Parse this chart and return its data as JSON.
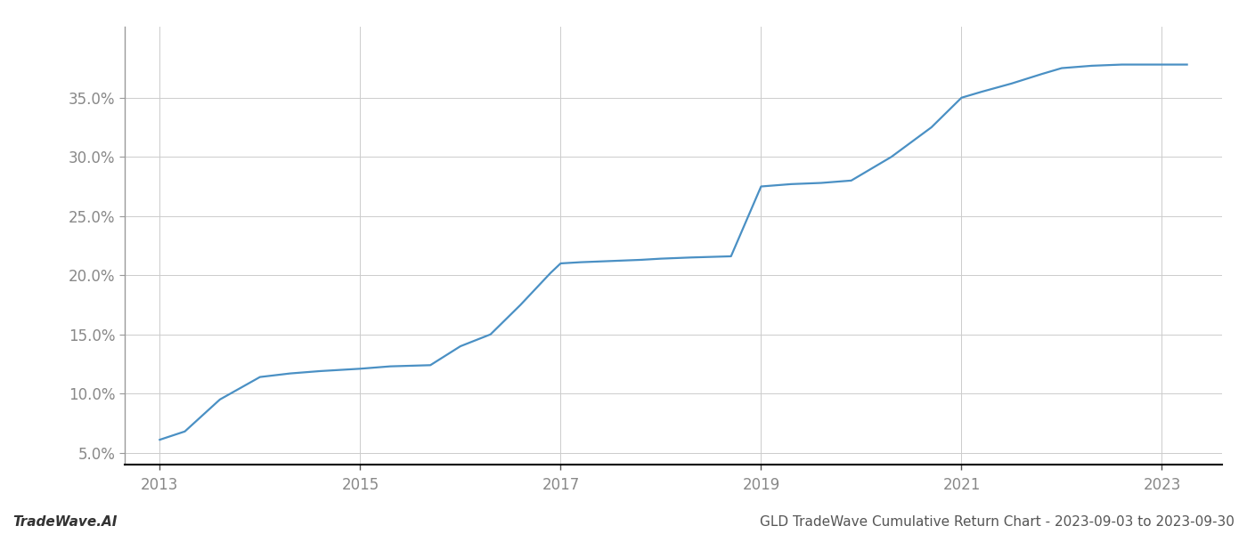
{
  "title": "",
  "footer_left": "TradeWave.AI",
  "footer_right": "GLD TradeWave Cumulative Return Chart - 2023-09-03 to 2023-09-30",
  "line_color": "#4a90c4",
  "background_color": "#ffffff",
  "grid_color": "#cccccc",
  "x_years": [
    2013.0,
    2013.25,
    2013.6,
    2014.0,
    2014.3,
    2014.6,
    2015.0,
    2015.3,
    2015.7,
    2016.0,
    2016.3,
    2016.6,
    2016.9,
    2017.0,
    2017.2,
    2017.5,
    2017.8,
    2018.0,
    2018.3,
    2018.7,
    2019.0,
    2019.3,
    2019.6,
    2019.9,
    2020.3,
    2020.7,
    2021.0,
    2021.2,
    2021.5,
    2021.8,
    2022.0,
    2022.3,
    2022.6,
    2022.9,
    2023.0,
    2023.25
  ],
  "y_values": [
    6.1,
    6.8,
    9.5,
    11.4,
    11.7,
    11.9,
    12.1,
    12.3,
    12.4,
    14.0,
    15.0,
    17.5,
    20.2,
    21.0,
    21.1,
    21.2,
    21.3,
    21.4,
    21.5,
    21.6,
    27.5,
    27.7,
    27.8,
    28.0,
    30.0,
    32.5,
    35.0,
    35.5,
    36.2,
    37.0,
    37.5,
    37.7,
    37.8,
    37.8,
    37.8,
    37.8
  ],
  "ylim": [
    4.0,
    41.0
  ],
  "yticks": [
    5.0,
    10.0,
    15.0,
    20.0,
    25.0,
    30.0,
    35.0
  ],
  "xlim": [
    2012.65,
    2023.6
  ],
  "xticks": [
    2013,
    2015,
    2017,
    2019,
    2021,
    2023
  ],
  "line_width": 1.6,
  "axis_label_color": "#888888",
  "tick_label_fontsize": 12,
  "footer_fontsize": 11
}
